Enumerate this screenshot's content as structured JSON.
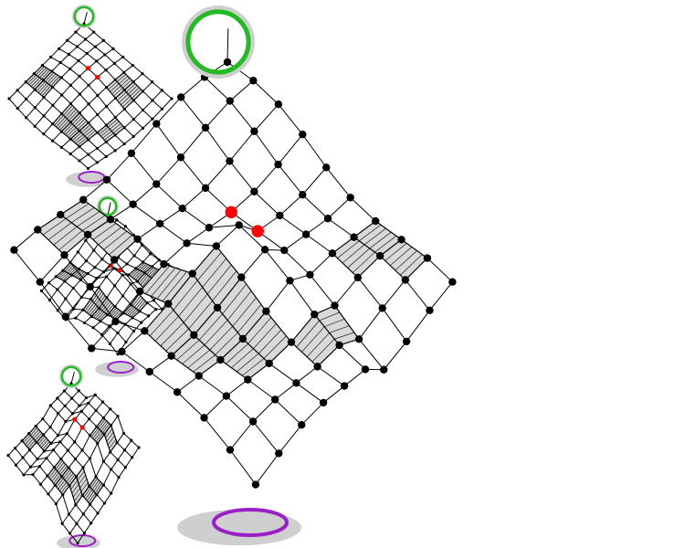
{
  "panels": [
    {
      "id": "thumb-1",
      "grid": 9,
      "warp": "flat"
    },
    {
      "id": "thumb-2",
      "grid": 9,
      "warp": "stepped"
    },
    {
      "id": "thumb-3",
      "grid": 9,
      "warp": "boxy"
    },
    {
      "id": "main-view",
      "grid": 9,
      "warp": "stepped"
    }
  ],
  "colors": {
    "shaded": "#d9d9d9",
    "selected_node": "#ff0000",
    "top_ring": "#22bb22",
    "bottom_ring": "#9b1fc9",
    "shadow": "#cfcfcf"
  },
  "selected_nodes": 2
}
